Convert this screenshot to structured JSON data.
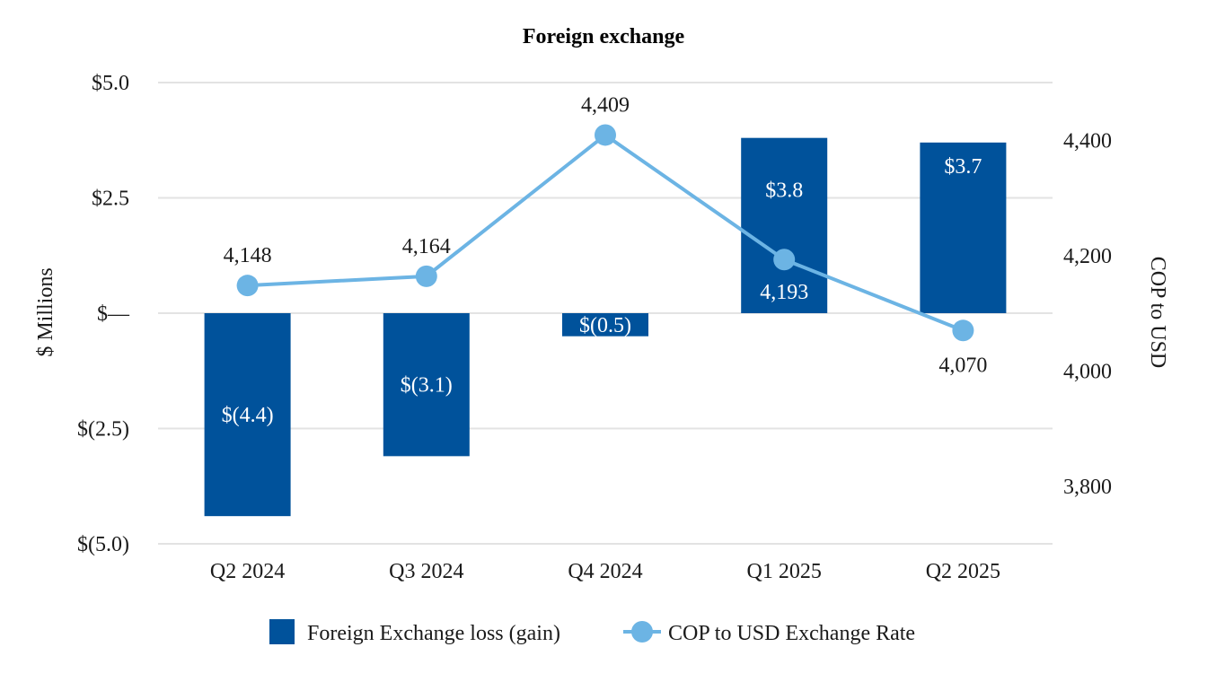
{
  "chart_data": {
    "type": "bar",
    "title": "Foreign exchange",
    "categories": [
      "Q2 2024",
      "Q3 2024",
      "Q4 2024",
      "Q1 2025",
      "Q2 2025"
    ],
    "ylabel": "$ Millions",
    "y2label": "COP to USD",
    "ylim": [
      -5.0,
      5.0
    ],
    "y2lim": [
      3700,
      4500
    ],
    "y_ticks": [
      {
        "value": 5.0,
        "label": "$5.0"
      },
      {
        "value": 2.5,
        "label": "$2.5"
      },
      {
        "value": 0,
        "label": "$—"
      },
      {
        "value": -2.5,
        "label": "$(2.5)"
      },
      {
        "value": -5.0,
        "label": "$(5.0)"
      }
    ],
    "y2_ticks": [
      {
        "value": 4400,
        "label": "4,400"
      },
      {
        "value": 4200,
        "label": "4,200"
      },
      {
        "value": 4000,
        "label": "4,000"
      },
      {
        "value": 3800,
        "label": "3,800"
      }
    ],
    "series": [
      {
        "name": "Foreign Exchange loss (gain)",
        "kind": "bar",
        "axis": "left",
        "color": "#00529B",
        "values": [
          -4.4,
          -3.1,
          -0.5,
          3.8,
          3.7
        ],
        "labels": [
          "$(4.4)",
          "$(3.1)",
          "$(0.5)",
          "$3.8",
          "$3.7"
        ]
      },
      {
        "name": "COP to USD Exchange Rate",
        "kind": "line",
        "axis": "right",
        "color": "#6CB4E4",
        "values": [
          4148,
          4164,
          4409,
          4193,
          4070
        ],
        "labels": [
          "4,148",
          "4,164",
          "4,409",
          "4,193",
          "4,070"
        ]
      }
    ],
    "legend_position": "bottom"
  }
}
